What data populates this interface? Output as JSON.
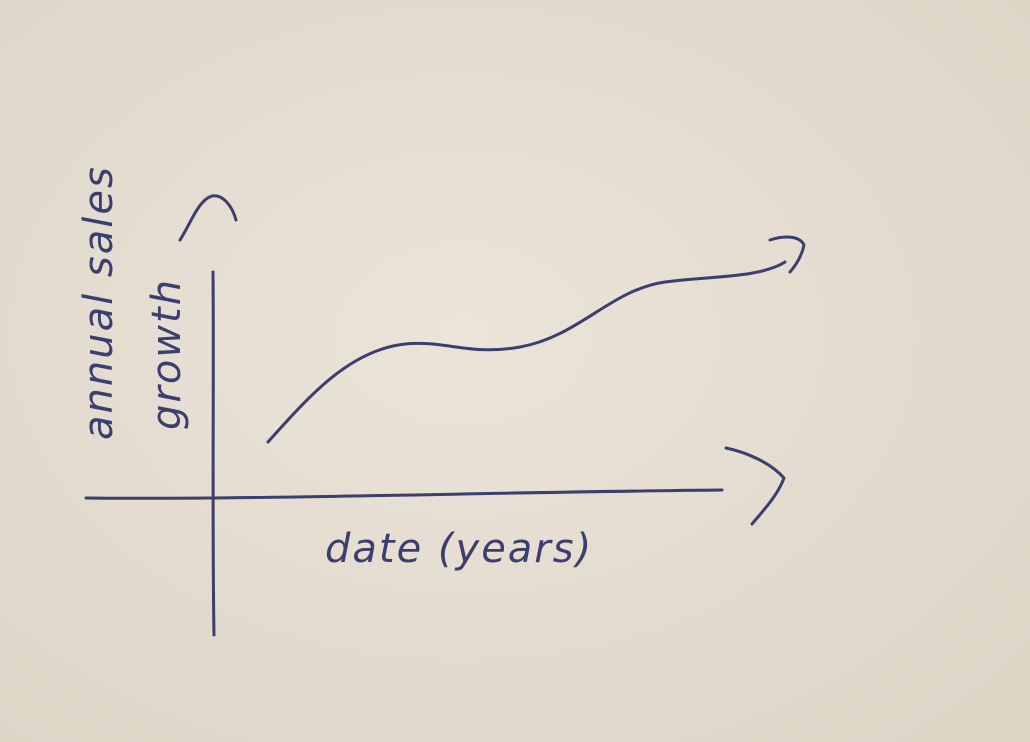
{
  "sketch": {
    "y_label": [
      "annual sales",
      "growth"
    ],
    "x_label": "date (years)"
  }
}
